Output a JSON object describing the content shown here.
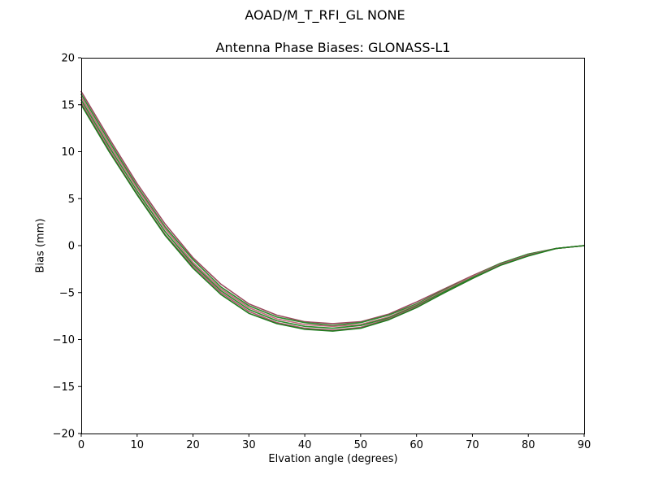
{
  "chart_data": {
    "type": "line",
    "title": "AOAD/M_T_RFI_GL NONE",
    "subtitle": "Antenna Phase Biases: GLONASS-L1",
    "xlabel": "Elvation angle (degrees)",
    "ylabel": "Bias (mm)",
    "xlim": [
      0,
      90
    ],
    "ylim": [
      -20,
      20
    ],
    "xticks": [
      0,
      10,
      20,
      30,
      40,
      50,
      60,
      70,
      80,
      90
    ],
    "yticks": [
      -20,
      -15,
      -10,
      -5,
      0,
      5,
      10,
      15,
      20
    ],
    "grid": false,
    "legend": "none",
    "x": [
      0,
      5,
      10,
      15,
      20,
      25,
      30,
      35,
      40,
      45,
      50,
      55,
      60,
      65,
      70,
      75,
      80,
      85,
      90
    ],
    "series": [
      {
        "color": "#9a4a5e",
        "values": [
          16.4,
          11.4,
          6.6,
          2.3,
          -1.3,
          -4.1,
          -6.2,
          -7.4,
          -8.1,
          -8.3,
          -8.1,
          -7.3,
          -6.0,
          -4.6,
          -3.2,
          -1.9,
          -0.9,
          -0.3,
          0.0
        ]
      },
      {
        "color": "#2e8b2e",
        "values": [
          16.1,
          11.1,
          6.3,
          2.0,
          -1.5,
          -4.4,
          -6.4,
          -7.6,
          -8.2,
          -8.5,
          -8.2,
          -7.4,
          -6.2,
          -4.7,
          -3.3,
          -1.9,
          -0.9,
          -0.3,
          0.0
        ]
      },
      {
        "color": "#c2687c",
        "values": [
          15.8,
          10.8,
          6.1,
          1.8,
          -1.8,
          -4.6,
          -6.6,
          -7.8,
          -8.4,
          -8.6,
          -8.4,
          -7.6,
          -6.3,
          -4.8,
          -3.3,
          -2.0,
          -1.0,
          -0.3,
          0.0
        ]
      },
      {
        "color": "#2a8b2a",
        "values": [
          15.5,
          10.5,
          5.8,
          1.5,
          -2.0,
          -4.8,
          -6.8,
          -8.0,
          -8.6,
          -8.8,
          -8.5,
          -7.7,
          -6.4,
          -4.9,
          -3.4,
          -2.0,
          -1.0,
          -0.3,
          0.0
        ]
      },
      {
        "color": "#b05570",
        "values": [
          15.2,
          10.2,
          5.5,
          1.2,
          -2.2,
          -5.0,
          -7.0,
          -8.2,
          -8.8,
          -9.0,
          -8.7,
          -7.8,
          -6.5,
          -5.0,
          -3.5,
          -2.0,
          -1.0,
          -0.3,
          0.0
        ]
      },
      {
        "color": "#1f7d1f",
        "values": [
          15.0,
          10.0,
          5.4,
          1.1,
          -2.4,
          -5.2,
          -7.2,
          -8.3,
          -8.9,
          -9.1,
          -8.8,
          -7.9,
          -6.6,
          -5.0,
          -3.5,
          -2.1,
          -1.1,
          -0.3,
          0.0
        ]
      }
    ]
  }
}
